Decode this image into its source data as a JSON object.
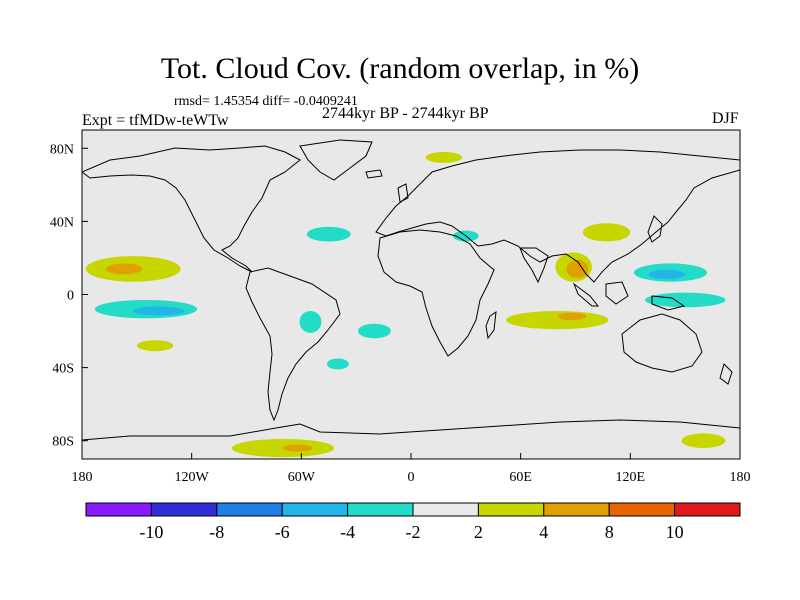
{
  "title": "Tot. Cloud Cov. (random overlap, in %)",
  "stats": "rmsd= 1.45354 diff= -0.0409241",
  "experiment": "Expt = tfMDw-teWTw",
  "period": "2744kyr BP - 2744kyr BP",
  "season": "DJF",
  "map": {
    "lon_range": [
      -180,
      180
    ],
    "lat_range": [
      -90,
      90
    ],
    "x_ticks": [
      {
        "lon": -180,
        "label": "180"
      },
      {
        "lon": -120,
        "label": "120W"
      },
      {
        "lon": -60,
        "label": "60W"
      },
      {
        "lon": 0,
        "label": "0"
      },
      {
        "lon": 60,
        "label": "60E"
      },
      {
        "lon": 120,
        "label": "120E"
      },
      {
        "lon": 180,
        "label": "180"
      }
    ],
    "y_ticks": [
      {
        "lat": 80,
        "label": "80N"
      },
      {
        "lat": 40,
        "label": "40N"
      },
      {
        "lat": 0,
        "label": "0"
      },
      {
        "lat": -40,
        "label": "40S"
      },
      {
        "lat": -80,
        "label": "80S"
      }
    ],
    "background_color": "#e8e8e8",
    "anomalies": [
      {
        "name": "central pacific north",
        "lon": -152,
        "lat": 14,
        "rlon": 26,
        "rlat": 7,
        "level": 2
      },
      {
        "name": "central pacific north core",
        "lon": -157,
        "lat": 14,
        "rlon": 10,
        "rlat": 3,
        "level": 4
      },
      {
        "name": "pacific south band",
        "lon": -145,
        "lat": -8,
        "rlon": 28,
        "rlat": 5,
        "level": -2
      },
      {
        "name": "pacific south band core",
        "lon": -138,
        "lat": -9,
        "rlon": 14,
        "rlat": 2.5,
        "level": -4
      },
      {
        "name": "south pacific",
        "lon": -140,
        "lat": -28,
        "rlon": 10,
        "rlat": 3,
        "level": 2
      },
      {
        "name": "north atlantic",
        "lon": -45,
        "lat": 33,
        "rlon": 12,
        "rlat": 4,
        "level": -2
      },
      {
        "name": "south atlantic",
        "lon": -20,
        "lat": -20,
        "rlon": 9,
        "rlat": 4,
        "level": -2
      },
      {
        "name": "south america",
        "lon": -55,
        "lat": -15,
        "rlon": 6,
        "rlat": 6,
        "level": -2
      },
      {
        "name": "south atlantic mid",
        "lon": -40,
        "lat": -38,
        "rlon": 6,
        "rlat": 3,
        "level": -2
      },
      {
        "name": "arabia",
        "lon": 30,
        "lat": 32,
        "rlon": 7,
        "rlat": 3,
        "level": -2
      },
      {
        "name": "indian ocean south",
        "lon": 80,
        "lat": -14,
        "rlon": 28,
        "rlat": 5,
        "level": 2
      },
      {
        "name": "indian ocean south core",
        "lon": 88,
        "lat": -12,
        "rlon": 8,
        "rlat": 2,
        "level": 4
      },
      {
        "name": "bay of bengal",
        "lon": 89,
        "lat": 15,
        "rlon": 10,
        "rlat": 8,
        "level": 2
      },
      {
        "name": "bay of bengal core",
        "lon": 91,
        "lat": 14,
        "rlon": 6,
        "rlat": 5,
        "level": 4
      },
      {
        "name": "western pacific",
        "lon": 142,
        "lat": 12,
        "rlon": 20,
        "rlat": 5,
        "level": -2
      },
      {
        "name": "western pacific core",
        "lon": 140,
        "lat": 11,
        "rlon": 10,
        "rlat": 2.5,
        "level": -4
      },
      {
        "name": "maritime continent",
        "lon": 150,
        "lat": -3,
        "rlon": 22,
        "rlat": 4,
        "level": -2
      },
      {
        "name": "china",
        "lon": 107,
        "lat": 34,
        "rlon": 13,
        "rlat": 5,
        "level": 2
      },
      {
        "name": "north atlantic high",
        "lon": 18,
        "lat": 75,
        "rlon": 10,
        "rlat": 3,
        "level": 2
      },
      {
        "name": "antarctic",
        "lon": -70,
        "lat": -84,
        "rlon": 28,
        "rlat": 5,
        "level": 2
      },
      {
        "name": "antarctic core",
        "lon": -62,
        "lat": -84,
        "rlon": 8,
        "rlat": 2,
        "level": 4
      },
      {
        "name": "antarctic east",
        "lon": 160,
        "lat": -80,
        "rlon": 12,
        "rlat": 4,
        "level": 2
      }
    ]
  },
  "colorbar": {
    "colors": [
      "#8a1aff",
      "#2f2fd6",
      "#1f7ee8",
      "#22b5e8",
      "#22dcc8",
      "#e9e9e9",
      "#c8d600",
      "#e0a000",
      "#e86400",
      "#e01a1a"
    ],
    "labels": [
      "-10",
      "-8",
      "-6",
      "-4",
      "-2",
      "2",
      "4",
      "8",
      "10"
    ]
  }
}
